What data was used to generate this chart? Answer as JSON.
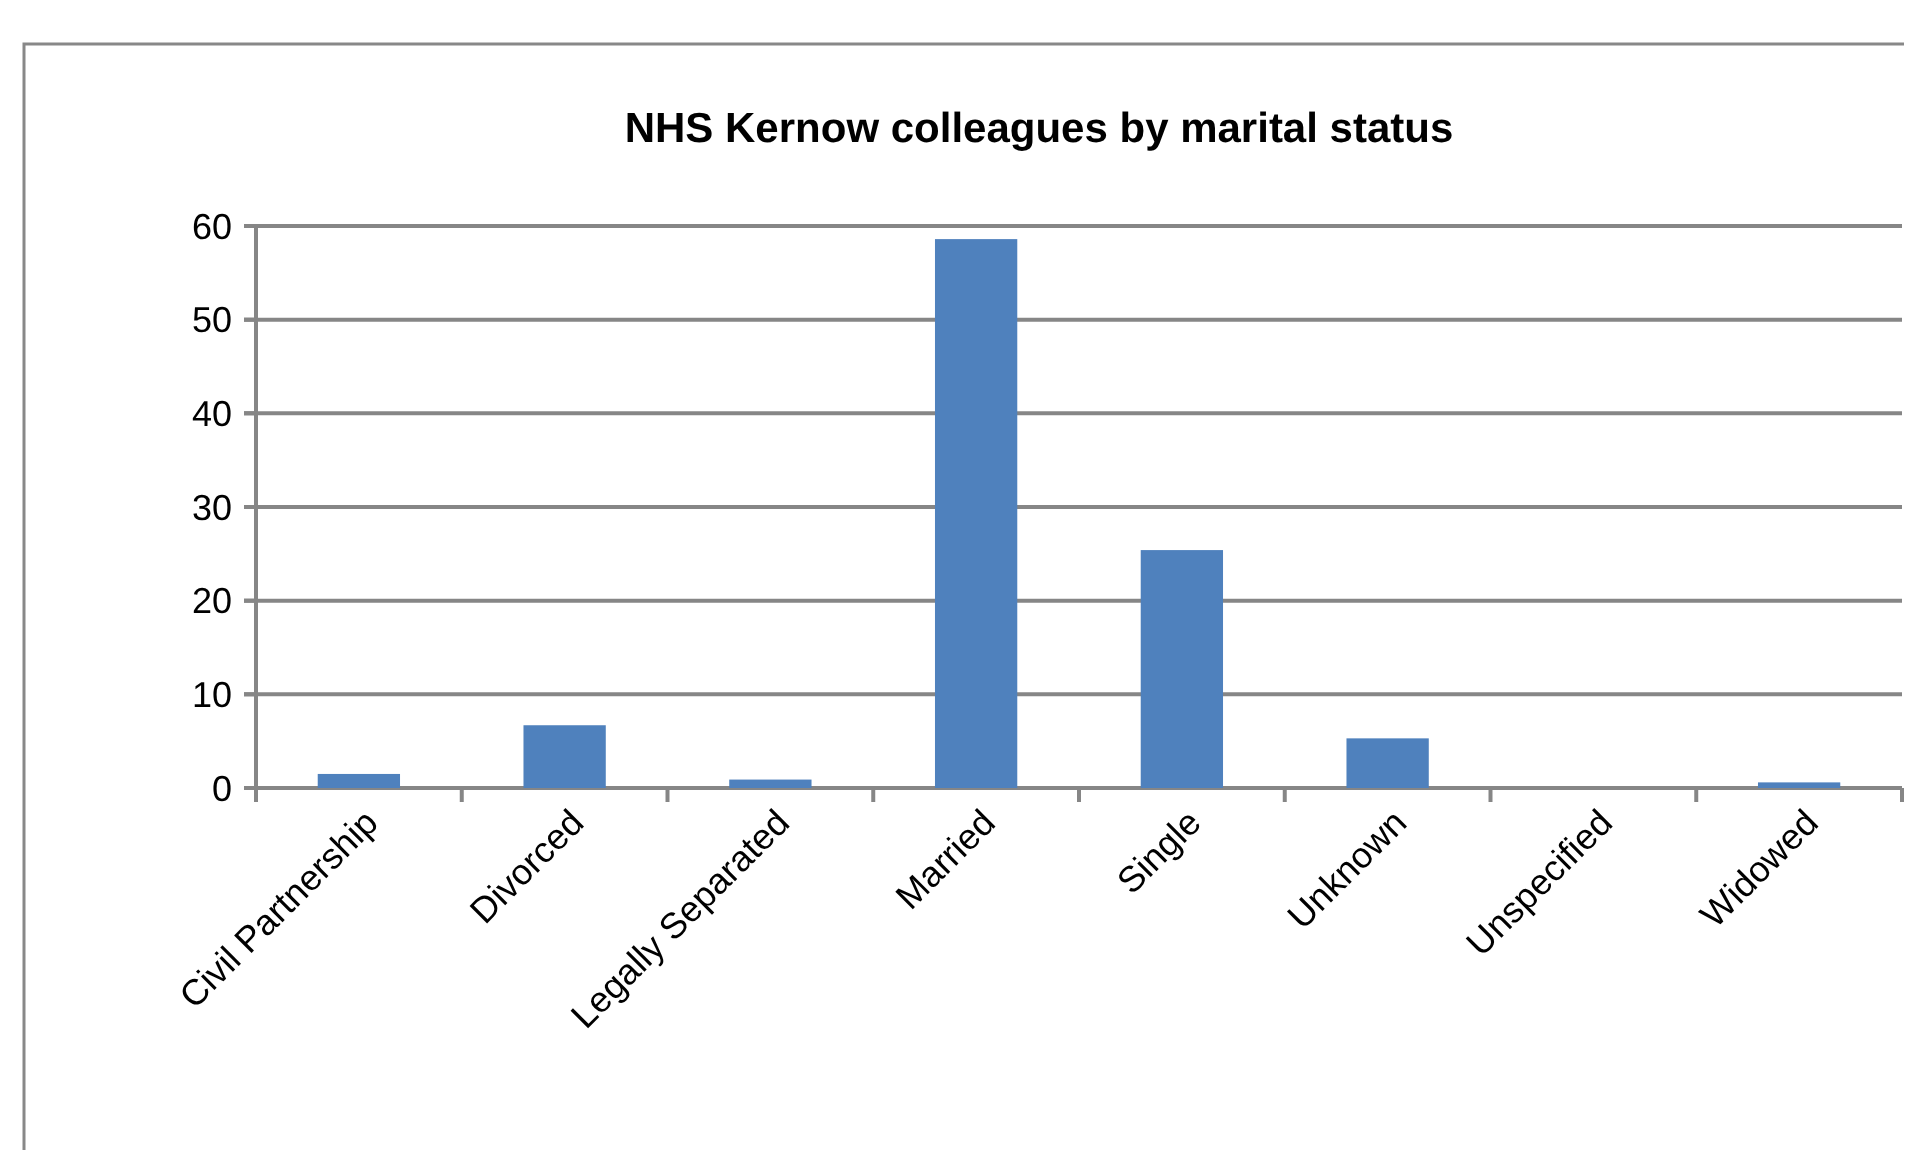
{
  "chart_data": {
    "type": "bar",
    "title": "NHS Kernow colleagues by marital status",
    "categories": [
      "Civil Partnership",
      "Divorced",
      "Legally Separated",
      "Married",
      "Single",
      "Unknown",
      "Unspecified",
      "Widowed"
    ],
    "values": [
      1.5,
      6.7,
      0.9,
      58.6,
      25.4,
      5.3,
      0,
      0.6
    ],
    "color": "#4f81bd",
    "ylim": [
      0,
      60
    ],
    "yticks": [
      0,
      10,
      20,
      30,
      40,
      50,
      60
    ],
    "grid": "y"
  }
}
